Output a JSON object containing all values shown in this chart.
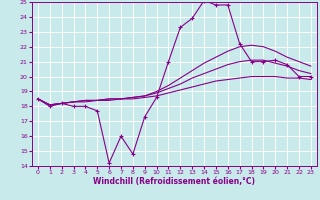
{
  "xlabel": "Windchill (Refroidissement éolien,°C)",
  "bg_color": "#c8eaea",
  "grid_color": "#ffffff",
  "line_color": "#880088",
  "xlim": [
    -0.5,
    23.5
  ],
  "ylim": [
    14,
    25
  ],
  "xticks": [
    0,
    1,
    2,
    3,
    4,
    5,
    6,
    7,
    8,
    9,
    10,
    11,
    12,
    13,
    14,
    15,
    16,
    17,
    18,
    19,
    20,
    21,
    22,
    23
  ],
  "yticks": [
    14,
    15,
    16,
    17,
    18,
    19,
    20,
    21,
    22,
    23,
    24,
    25
  ],
  "line1_x": [
    0,
    1,
    2,
    3,
    4,
    5,
    6,
    7,
    8,
    9,
    10,
    11,
    12,
    13,
    14,
    15,
    16,
    17,
    18,
    19,
    20,
    21,
    22,
    23
  ],
  "line1_y": [
    18.5,
    18.0,
    18.2,
    18.0,
    18.0,
    17.7,
    14.2,
    16.0,
    14.8,
    17.3,
    18.6,
    21.0,
    23.3,
    23.9,
    25.1,
    24.8,
    24.8,
    22.2,
    21.0,
    21.0,
    21.1,
    20.8,
    20.0,
    20.0
  ],
  "line2_x": [
    0,
    1,
    2,
    3,
    4,
    5,
    6,
    7,
    8,
    9,
    10,
    11,
    12,
    13,
    14,
    15,
    16,
    17,
    18,
    19,
    20,
    21,
    22,
    23
  ],
  "line2_y": [
    18.5,
    18.1,
    18.2,
    18.3,
    18.4,
    18.4,
    18.5,
    18.5,
    18.6,
    18.7,
    19.0,
    19.4,
    19.9,
    20.4,
    20.9,
    21.3,
    21.7,
    22.0,
    22.1,
    22.0,
    21.7,
    21.3,
    21.0,
    20.7
  ],
  "line3_x": [
    0,
    1,
    2,
    3,
    4,
    5,
    6,
    7,
    8,
    9,
    10,
    11,
    12,
    13,
    14,
    15,
    16,
    17,
    18,
    19,
    20,
    21,
    22,
    23
  ],
  "line3_y": [
    18.5,
    18.1,
    18.2,
    18.3,
    18.4,
    18.4,
    18.5,
    18.5,
    18.6,
    18.7,
    18.9,
    19.2,
    19.5,
    19.9,
    20.2,
    20.5,
    20.8,
    21.0,
    21.1,
    21.1,
    20.9,
    20.7,
    20.4,
    20.2
  ],
  "line4_x": [
    0,
    1,
    2,
    3,
    4,
    5,
    6,
    7,
    8,
    9,
    10,
    11,
    12,
    13,
    14,
    15,
    16,
    17,
    18,
    19,
    20,
    21,
    22,
    23
  ],
  "line4_y": [
    18.5,
    18.1,
    18.2,
    18.3,
    18.3,
    18.4,
    18.4,
    18.5,
    18.5,
    18.6,
    18.7,
    18.9,
    19.1,
    19.3,
    19.5,
    19.7,
    19.8,
    19.9,
    20.0,
    20.0,
    20.0,
    19.9,
    19.9,
    19.8
  ]
}
